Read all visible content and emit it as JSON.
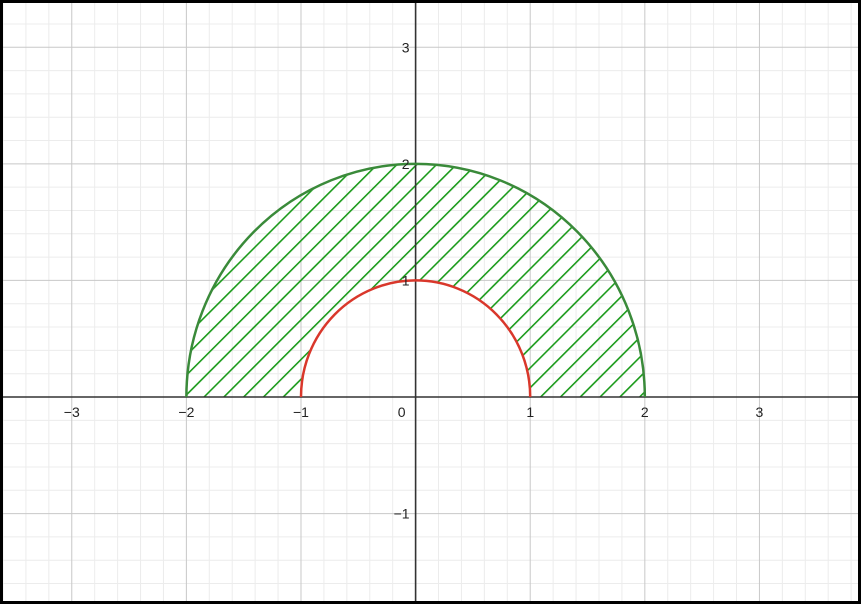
{
  "graph": {
    "x_ticks": [
      {
        "value": -3,
        "label": "−3"
      },
      {
        "value": -2,
        "label": "−2"
      },
      {
        "value": -1,
        "label": "−1"
      },
      {
        "value": 0,
        "label": "0"
      },
      {
        "value": 1,
        "label": "1"
      },
      {
        "value": 2,
        "label": "2"
      },
      {
        "value": 3,
        "label": "3"
      }
    ],
    "y_ticks": [
      {
        "value": -1,
        "label": "−1"
      },
      {
        "value": 1,
        "label": "1"
      },
      {
        "value": 2,
        "label": "2"
      },
      {
        "value": 3,
        "label": "3"
      }
    ],
    "x_range": [
      -3.6,
      3.86
    ],
    "y_range": [
      -1.75,
      3.38
    ],
    "outer_arc": {
      "radius": 2,
      "color": "#3a8a3a"
    },
    "inner_arc": {
      "radius": 1,
      "color": "#d9372b"
    },
    "hatch_color": "#1a9a1a",
    "axis_color": "#333333",
    "grid_major_color": "#c8c8c8",
    "grid_minor_color": "#ececec"
  }
}
